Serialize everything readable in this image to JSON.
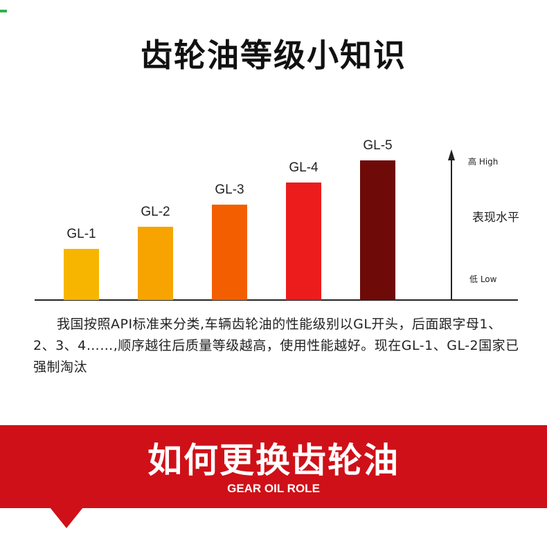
{
  "page": {
    "title": "齿轮油等级小知识",
    "description": "我国按照API标准来分类,车辆齿轮油的性能级别以GL开头，后面跟字母1、2、3、4……,顺序越往后质量等级越高，使用性能越好。现在GL-1、GL-2国家已强制淘汰",
    "banner": {
      "title": "如何更换齿轮油",
      "subtitle": "GEAR OIL ROLE"
    },
    "colors": {
      "banner": "#cf1018"
    }
  },
  "chart_data": {
    "type": "bar",
    "categories": [
      "GL-1",
      "GL-2",
      "GL-3",
      "GL-4",
      "GL-5"
    ],
    "values": [
      1,
      2,
      3,
      4,
      5
    ],
    "colors": [
      "#f8b500",
      "#f7a400",
      "#f35f00",
      "#ec1c1c",
      "#6e0a07"
    ],
    "ylabel": "表现水平",
    "axis_high_label": "高 High",
    "axis_low_label": "低 Low",
    "ylim": [
      0,
      5
    ],
    "grid": false,
    "legend": "none"
  }
}
